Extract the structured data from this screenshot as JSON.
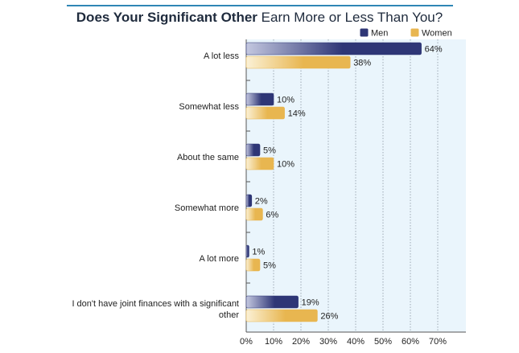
{
  "chart_data": {
    "type": "bar",
    "orientation": "horizontal",
    "title_bold": "Does Your Significant Other",
    "title_rest": "Earn More or Less Than You?",
    "categories": [
      [
        "A lot less"
      ],
      [
        "Somewhat less"
      ],
      [
        "About the same"
      ],
      [
        "Somewhat more"
      ],
      [
        "A lot more"
      ],
      [
        "I don't have joint finances with a significant",
        "other"
      ]
    ],
    "series": [
      {
        "name": "Men",
        "values": [
          64,
          10,
          5,
          2,
          1,
          19
        ],
        "color": "#2e3676",
        "color_light": "#c4c8e0"
      },
      {
        "name": "Women",
        "values": [
          38,
          14,
          10,
          6,
          5,
          26
        ],
        "color": "#e8b650",
        "color_light": "#fbf1d6"
      }
    ],
    "xlim": [
      0,
      80
    ],
    "xticks": [
      0,
      10,
      20,
      30,
      40,
      50,
      60,
      70
    ],
    "tick_suffix": "%",
    "grid": true,
    "legend": "top-right",
    "plot_background": "#eaf5fc"
  }
}
